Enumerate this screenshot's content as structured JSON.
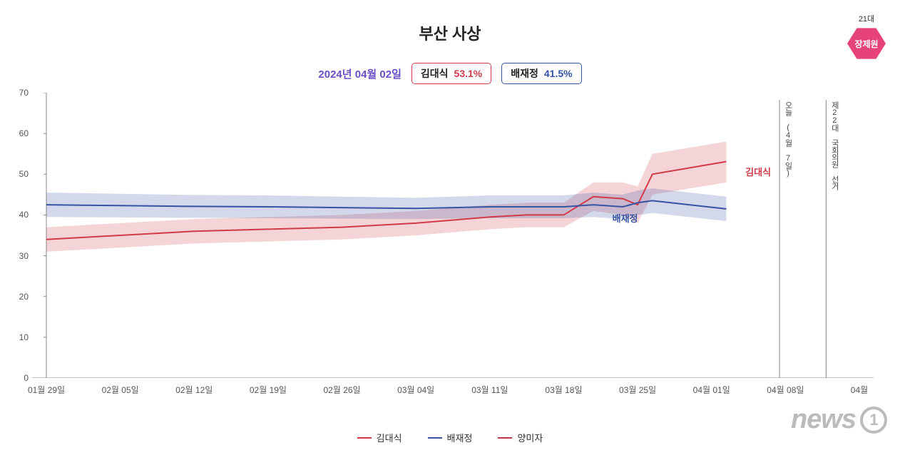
{
  "title": "부산 사상",
  "corner_badge": {
    "super": "21대",
    "label": "장제원",
    "bg": "#e6437b"
  },
  "sub": {
    "date": "2024년 04월 02일",
    "date_color": "#6a4fc7",
    "pills": [
      {
        "name": "김대식",
        "pct": "53.1%",
        "color": "#d13b49",
        "border": "#d13b49"
      },
      {
        "name": "배재정",
        "pct": "41.5%",
        "color": "#3654a3",
        "border": "#3654a3"
      }
    ]
  },
  "chart": {
    "type": "line-with-band",
    "ylim": [
      0,
      70
    ],
    "yticks": [
      0,
      10,
      20,
      30,
      40,
      50,
      60,
      70
    ],
    "x_dates": [
      "01월 29일",
      "02월 05일",
      "02월 12일",
      "02월 19일",
      "02월 26일",
      "03월 04일",
      "03월 11일",
      "03월 18일",
      "03월 25일",
      "04월 01일",
      "04월 08일",
      "04월"
    ],
    "x_count": 12,
    "background_color": "#ffffff",
    "grid_color": "#dedede",
    "axis_color": "#888888",
    "tick_fontsize": 12,
    "series": [
      {
        "id": "kim",
        "label": "김대식",
        "color": "#d13b49",
        "band_fill": "rgba(209,59,73,0.22)",
        "line_width": 2,
        "x": [
          0,
          1,
          2,
          3,
          4,
          5,
          6,
          6.5,
          7,
          7.4,
          7.8,
          8,
          8.2,
          9.2
        ],
        "y": [
          34,
          35,
          36,
          36.5,
          37,
          38,
          39.5,
          40,
          40,
          44.5,
          44,
          42.5,
          50,
          53.1
        ],
        "band_low": [
          31,
          32,
          33,
          33.5,
          34,
          35,
          36.5,
          37,
          37,
          41,
          40,
          38,
          45,
          48
        ],
        "band_high": [
          37,
          38,
          39,
          39.5,
          40,
          41,
          42.5,
          43,
          43,
          48,
          48,
          47,
          55,
          58
        ],
        "end_label_xy": [
          9.4,
          51
        ]
      },
      {
        "id": "bae",
        "label": "배재정",
        "color": "#3654a3",
        "band_fill": "rgba(54,84,163,0.22)",
        "line_width": 2,
        "x": [
          0,
          1,
          2,
          3,
          4,
          5,
          6,
          6.5,
          7,
          7.4,
          7.8,
          8,
          8.2,
          9.2
        ],
        "y": [
          42.5,
          42.3,
          42.1,
          42,
          41.8,
          41.6,
          42,
          42,
          42,
          42.5,
          42,
          43,
          43.5,
          41.5
        ],
        "band_low": [
          39.5,
          39.4,
          39.3,
          39.2,
          39.1,
          39,
          39.2,
          39.2,
          39.2,
          39.5,
          39,
          40,
          40.5,
          38.5
        ],
        "band_high": [
          45.5,
          45.2,
          44.9,
          44.8,
          44.5,
          44.2,
          44.8,
          44.8,
          44.8,
          45.5,
          45,
          46,
          46.5,
          44.5
        ],
        "end_label_xy": [
          7.6,
          42
        ],
        "end_label_offset": true
      },
      {
        "id": "yang",
        "label": "양미자",
        "color": "#b83a46",
        "band_fill": "rgba(184,58,70,0.0)",
        "line_width": 2,
        "x": [],
        "y": [],
        "band_low": [],
        "band_high": []
      }
    ],
    "vlines": [
      {
        "x": 9.92,
        "label": "오늘 (4월 7일)",
        "color": "#888888"
      },
      {
        "x": 10.55,
        "label": "제22대 국회의원 선거",
        "color": "#888888"
      }
    ]
  },
  "legend_items": [
    {
      "label": "김대식",
      "color": "#d13b49"
    },
    {
      "label": "배재정",
      "color": "#3654a3"
    },
    {
      "label": "양미자",
      "color": "#b83a46"
    }
  ],
  "watermark": {
    "text": "news",
    "suffix": "1",
    "color": "#bbbbbb"
  }
}
